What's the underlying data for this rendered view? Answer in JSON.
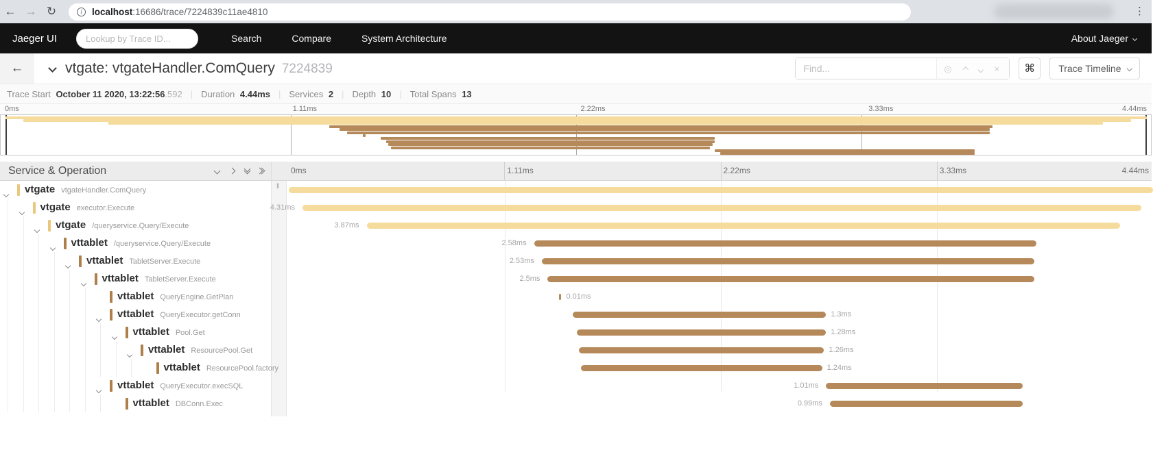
{
  "browser": {
    "url_host": "localhost",
    "url_rest": ":16686/trace/7224839c11ae4810"
  },
  "navbar": {
    "brand": "Jaeger UI",
    "lookup_placeholder": "Lookup by Trace ID...",
    "items": [
      "Search",
      "Compare",
      "System Architecture"
    ],
    "about_label": "About Jaeger"
  },
  "trace_header": {
    "title": "vtgate: vtgateHandler.ComQuery",
    "trace_id_short": "7224839",
    "find_placeholder": "Find...",
    "shortcut_glyph": "⌘",
    "view_selector_label": "Trace Timeline"
  },
  "summary": {
    "items": [
      {
        "label": "Trace Start",
        "value": "October 11 2020, 13:22:56",
        "suffix": ".592"
      },
      {
        "label": "Duration",
        "value": "4.44ms"
      },
      {
        "label": "Services",
        "value": "2"
      },
      {
        "label": "Depth",
        "value": "10"
      },
      {
        "label": "Total Spans",
        "value": "13"
      }
    ]
  },
  "timeline": {
    "panel_header": "Service & Operation",
    "duration_ms": 4.44,
    "ticks": [
      {
        "t": 0.0,
        "label": "0ms"
      },
      {
        "t": 1.11,
        "label": "1.11ms"
      },
      {
        "t": 2.22,
        "label": "2.22ms"
      },
      {
        "t": 3.33,
        "label": "3.33ms"
      },
      {
        "t": 4.44,
        "label": "4.44ms",
        "align": "right"
      }
    ]
  },
  "service_colors": {
    "vtgate": {
      "bar": "#f5db9c",
      "chip": "#e9c77d"
    },
    "vttablet": {
      "bar": "#b5895a",
      "chip": "#af7f4b"
    }
  },
  "spans": [
    {
      "service": "vtgate",
      "operation": "vtgateHandler.ComQuery",
      "depth": 0,
      "leaf": false,
      "start_ms": 0.0,
      "duration_ms": 4.44,
      "label": "",
      "label_side": "none"
    },
    {
      "service": "vtgate",
      "operation": "executor.Execute",
      "depth": 1,
      "leaf": false,
      "start_ms": 0.07,
      "duration_ms": 4.31,
      "label": "4.31ms",
      "label_side": "left"
    },
    {
      "service": "vtgate",
      "operation": "/queryservice.Query/Execute",
      "depth": 2,
      "leaf": false,
      "start_ms": 0.4,
      "duration_ms": 3.87,
      "label": "3.87ms",
      "label_side": "left"
    },
    {
      "service": "vttablet",
      "operation": "/queryservice.Query/Execute",
      "depth": 3,
      "leaf": false,
      "start_ms": 1.26,
      "duration_ms": 2.58,
      "label": "2.58ms",
      "label_side": "left"
    },
    {
      "service": "vttablet",
      "operation": "TabletServer.Execute",
      "depth": 4,
      "leaf": false,
      "start_ms": 1.3,
      "duration_ms": 2.53,
      "label": "2.53ms",
      "label_side": "left"
    },
    {
      "service": "vttablet",
      "operation": "TabletServer.Execute",
      "depth": 5,
      "leaf": false,
      "start_ms": 1.33,
      "duration_ms": 2.5,
      "label": "2.5ms",
      "label_side": "left"
    },
    {
      "service": "vttablet",
      "operation": "QueryEngine.GetPlan",
      "depth": 6,
      "leaf": true,
      "start_ms": 1.39,
      "duration_ms": 0.01,
      "label": "0.01ms",
      "label_side": "right"
    },
    {
      "service": "vttablet",
      "operation": "QueryExecutor.getConn",
      "depth": 6,
      "leaf": false,
      "start_ms": 1.46,
      "duration_ms": 1.3,
      "label": "1.3ms",
      "label_side": "right"
    },
    {
      "service": "vttablet",
      "operation": "Pool.Get",
      "depth": 7,
      "leaf": false,
      "start_ms": 1.48,
      "duration_ms": 1.28,
      "label": "1.28ms",
      "label_side": "right"
    },
    {
      "service": "vttablet",
      "operation": "ResourcePool.Get",
      "depth": 8,
      "leaf": false,
      "start_ms": 1.49,
      "duration_ms": 1.26,
      "label": "1.26ms",
      "label_side": "right"
    },
    {
      "service": "vttablet",
      "operation": "ResourcePool.factory",
      "depth": 9,
      "leaf": true,
      "start_ms": 1.5,
      "duration_ms": 1.24,
      "label": "1.24ms",
      "label_side": "right"
    },
    {
      "service": "vttablet",
      "operation": "QueryExecutor.execSQL",
      "depth": 6,
      "leaf": false,
      "start_ms": 2.76,
      "duration_ms": 1.01,
      "label": "1.01ms",
      "label_side": "left"
    },
    {
      "service": "vttablet",
      "operation": "DBConn.Exec",
      "depth": 7,
      "leaf": true,
      "start_ms": 2.78,
      "duration_ms": 0.99,
      "label": "0.99ms",
      "label_side": "left"
    }
  ]
}
